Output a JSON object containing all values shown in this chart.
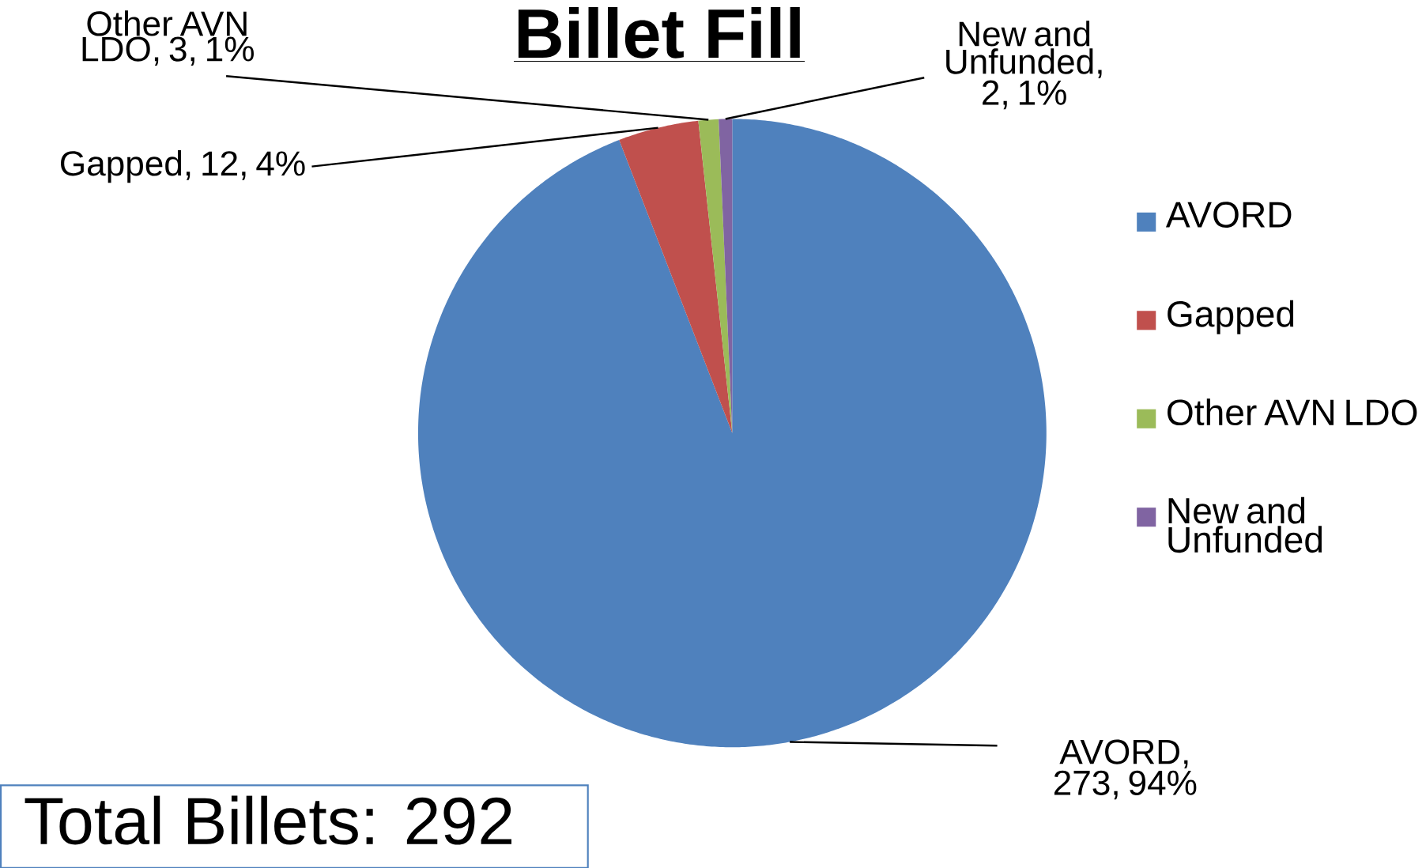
{
  "chart_data": {
    "type": "pie",
    "title": "Billet Fill",
    "categories": [
      "AVORD",
      "Gapped",
      "Other AVN LDO",
      "New and Unfunded"
    ],
    "values": [
      273,
      12,
      3,
      2
    ],
    "colors": [
      "#4f81bd",
      "#c0504d",
      "#9bbb59",
      "#8064a2"
    ],
    "value_labels": [
      "AVORD, 273, 94%",
      "Gapped, 12, 4%",
      "Other AVN LDO, 3, 1%",
      "New and Unfunded, 2, 1%"
    ],
    "legend": "right",
    "annotations": [
      "Total Billets: 292"
    ]
  }
}
